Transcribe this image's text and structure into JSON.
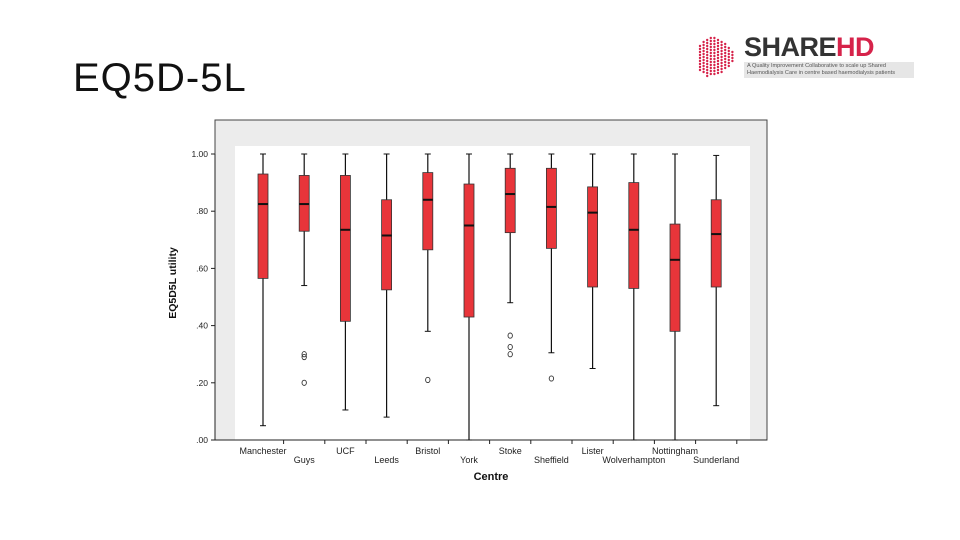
{
  "slide": {
    "title": "EQ5D-5L"
  },
  "logo": {
    "brand_main": "SHARE",
    "brand_accent": "HD",
    "tagline_line1": "A Quality Improvement Collaborative to scale up Shared",
    "tagline_line2": "Haemodialysis Care in centre based haemodialysis patients",
    "accent_color": "#d6234a"
  },
  "chart_data": {
    "type": "box",
    "xlabel": "Centre",
    "ylabel": "EQ5D5L utility",
    "ylim": [
      0,
      1
    ],
    "yticks": [
      ".00",
      ".20",
      ".40",
      ".60",
      ".80",
      "1.00"
    ],
    "grid": false,
    "box_color": "#e8353a",
    "plot_background": "#ececec",
    "categories": [
      "Manchester",
      "Guys",
      "UCF",
      "Leeds",
      "Bristol",
      "York",
      "Stoke",
      "Sheffield",
      "Lister",
      "Wolverhampton",
      "Nottingham",
      "Sunderland"
    ],
    "boxes": [
      {
        "category": "Manchester",
        "min": 0.05,
        "q1": 0.565,
        "median": 0.825,
        "q3": 0.93,
        "max": 1.0,
        "outliers": []
      },
      {
        "category": "Guys",
        "min": 0.54,
        "q1": 0.73,
        "median": 0.825,
        "q3": 0.925,
        "max": 1.0,
        "outliers": [
          0.3,
          0.29,
          0.2
        ]
      },
      {
        "category": "UCF",
        "min": 0.105,
        "q1": 0.415,
        "median": 0.735,
        "q3": 0.925,
        "max": 1.0,
        "outliers": []
      },
      {
        "category": "Leeds",
        "min": 0.08,
        "q1": 0.525,
        "median": 0.715,
        "q3": 0.84,
        "max": 1.0,
        "outliers": []
      },
      {
        "category": "Bristol",
        "min": 0.38,
        "q1": 0.665,
        "median": 0.84,
        "q3": 0.935,
        "max": 1.0,
        "outliers": [
          0.21
        ]
      },
      {
        "category": "York",
        "min": 0.0,
        "q1": 0.43,
        "median": 0.75,
        "q3": 0.895,
        "max": 1.0,
        "outliers": []
      },
      {
        "category": "Stoke",
        "min": 0.48,
        "q1": 0.725,
        "median": 0.86,
        "q3": 0.95,
        "max": 1.0,
        "outliers": [
          0.365,
          0.325,
          0.3
        ]
      },
      {
        "category": "Sheffield",
        "min": 0.305,
        "q1": 0.67,
        "median": 0.815,
        "q3": 0.95,
        "max": 1.0,
        "outliers": [
          0.215
        ]
      },
      {
        "category": "Lister",
        "min": 0.25,
        "q1": 0.535,
        "median": 0.795,
        "q3": 0.885,
        "max": 1.0,
        "outliers": []
      },
      {
        "category": "Wolverhampton",
        "min": 0.0,
        "q1": 0.53,
        "median": 0.735,
        "q3": 0.9,
        "max": 1.0,
        "outliers": []
      },
      {
        "category": "Nottingham",
        "min": 0.0,
        "q1": 0.38,
        "median": 0.63,
        "q3": 0.755,
        "max": 1.0,
        "outliers": []
      },
      {
        "category": "Sunderland",
        "min": 0.12,
        "q1": 0.535,
        "median": 0.72,
        "q3": 0.84,
        "max": 0.995,
        "outliers": []
      }
    ]
  }
}
